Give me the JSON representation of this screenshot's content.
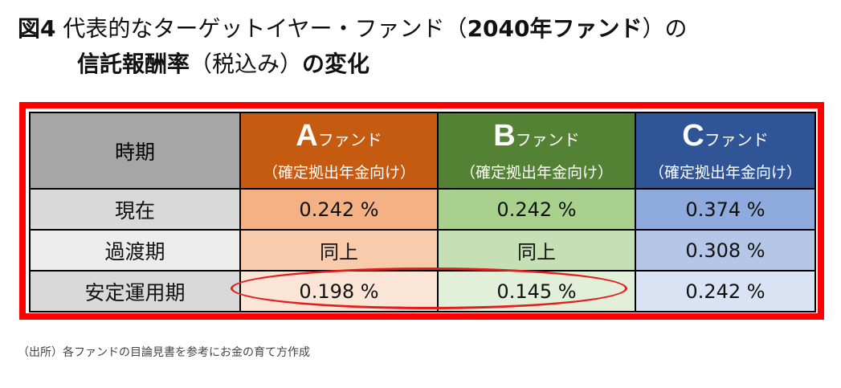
{
  "title": {
    "fig_label": "図4",
    "line1_text": "代表的なターゲットイヤー・ファンド（",
    "line1_bold": "2040年ファンド",
    "line1_end": "）の",
    "line2_bold": "信託報酬率",
    "line2_text": "（税込み）",
    "line2_end": "の変化"
  },
  "table": {
    "corner_label": "時期",
    "funds": [
      {
        "letter": "A",
        "suffix": "ファンド",
        "sub": "（確定拠出年金向け）",
        "color": "#c55a11"
      },
      {
        "letter": "B",
        "suffix": "ファンド",
        "sub": "（確定拠出年金向け）",
        "color": "#548235"
      },
      {
        "letter": "C",
        "suffix": "ファンド",
        "sub": "（確定拠出年金向け）",
        "color": "#2f5597"
      }
    ],
    "rows": [
      {
        "period": "現在",
        "a": "0.242 %",
        "b": "0.242 %",
        "c": "0.374 %"
      },
      {
        "period": "過渡期",
        "a": "同上",
        "b": "同上",
        "c": "0.308 %"
      },
      {
        "period": "安定運用期",
        "a": "0.198 %",
        "b": "0.145 %",
        "c": "0.242 %"
      }
    ]
  },
  "source": "（出所）各ファンドの目論見書を参考にお金の育て方作成",
  "colors": {
    "frame": "#ff0000",
    "highlight_ellipse": "#e02020"
  }
}
